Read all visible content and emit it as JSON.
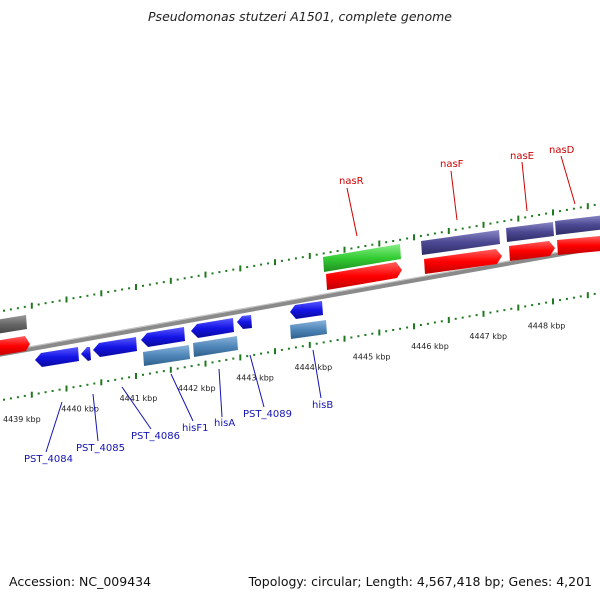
{
  "title": "Pseudomonas stutzeri A1501, complete genome",
  "footer": {
    "accession": "Accession: NC_009434",
    "topology": "Topology: circular; Length: 4,567,418 bp; Genes: 4,201"
  },
  "colors": {
    "backbone": "#8a8a8a",
    "tick": "#1e7a1e",
    "forward_red": "#ff0000",
    "reverse_blue": "#1414e6",
    "rna_steel": "#4f86b8",
    "purple": "#4b4892",
    "green": "#33cc33",
    "gray": "#666666",
    "forward_label": "#cc0000",
    "reverse_label": "#1414b4"
  },
  "kbp_labels": [
    "4439 kbp",
    "4440 kbp",
    "4441 kbp",
    "4442 kbp",
    "4443 kbp",
    "4444 kbp",
    "4445 kbp",
    "4446 kbp",
    "4447 kbp",
    "4448 kbp"
  ],
  "forward_genes": [
    "nasR",
    "nasF",
    "nasE",
    "nasD"
  ],
  "reverse_genes": [
    "PST_4084",
    "PST_4085",
    "PST_4086",
    "hisF1",
    "hisA",
    "PST_4089",
    "hisB"
  ]
}
